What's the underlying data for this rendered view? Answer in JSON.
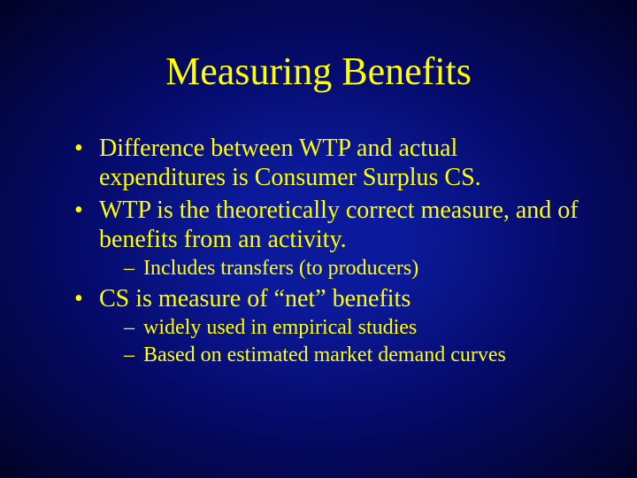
{
  "slide": {
    "title": "Measuring Benefits",
    "title_color": "#ffff00",
    "text_color": "#ffff00",
    "background_gradient_inner": "#0b1a9a",
    "background_gradient_outer": "#010226",
    "title_fontsize": 44,
    "body_fontsize": 28,
    "sub_fontsize": 24,
    "font_family": "Times New Roman",
    "bullets": [
      {
        "text": "Difference between WTP and actual expenditures is Consumer Surplus CS.",
        "sub": []
      },
      {
        "text": "WTP is the theoretically correct measure, and of benefits from an activity.",
        "sub": [
          "Includes transfers (to producers)"
        ]
      },
      {
        "text": "CS is measure of “net” benefits",
        "sub": [
          "widely used in empirical studies",
          "Based on estimated market demand curves"
        ]
      }
    ]
  }
}
